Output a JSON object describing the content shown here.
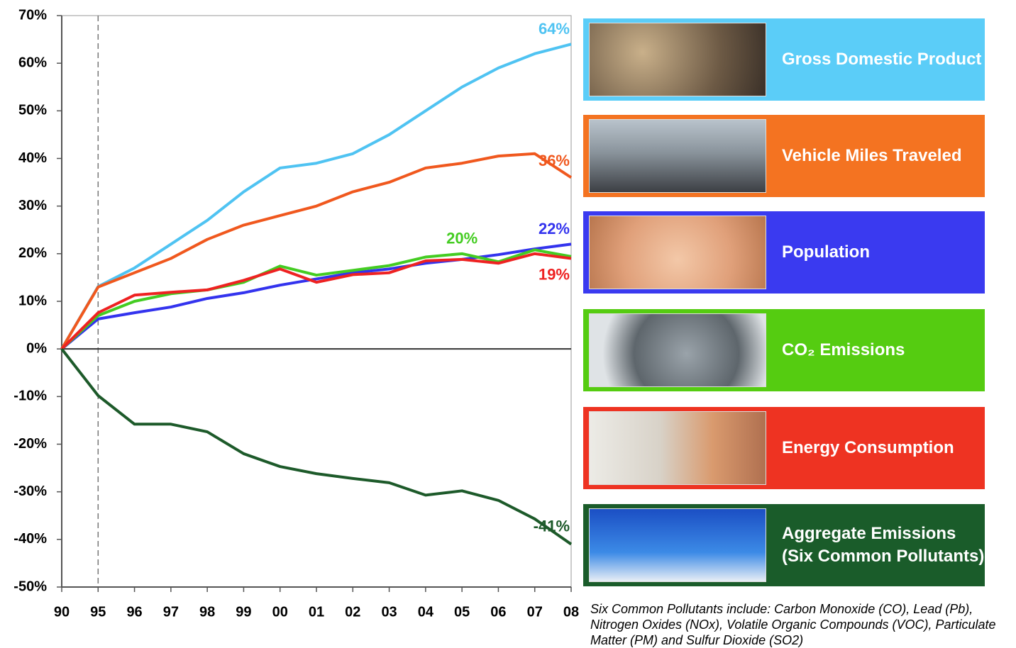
{
  "chart_data": {
    "type": "line",
    "categories": [
      "90",
      "95",
      "96",
      "97",
      "98",
      "99",
      "00",
      "01",
      "02",
      "03",
      "04",
      "05",
      "06",
      "07",
      "08"
    ],
    "ylim": [
      -50,
      70
    ],
    "yticks": [
      {
        "value": 70,
        "label": "70%"
      },
      {
        "value": 60,
        "label": "60%"
      },
      {
        "value": 50,
        "label": "50%"
      },
      {
        "value": 40,
        "label": "40%"
      },
      {
        "value": 30,
        "label": "30%"
      },
      {
        "value": 20,
        "label": "20%"
      },
      {
        "value": 10,
        "label": "10%"
      },
      {
        "value": 0,
        "label": "0%"
      },
      {
        "value": -10,
        "label": "-10%"
      },
      {
        "value": -20,
        "label": "-20%"
      },
      {
        "value": -30,
        "label": "-30%"
      },
      {
        "value": -40,
        "label": "-40%"
      },
      {
        "value": -50,
        "label": "-50%"
      }
    ],
    "grid": false,
    "series": [
      {
        "name": "Gross Domestic Product",
        "color": "#4fc3f2",
        "values": [
          0,
          13.1,
          17,
          22,
          27,
          33,
          38,
          39,
          41,
          45,
          50,
          55,
          59,
          62,
          64
        ],
        "value_labels": [
          null,
          null,
          null,
          null,
          null,
          null,
          null,
          null,
          null,
          null,
          null,
          null,
          null,
          null,
          "64%"
        ]
      },
      {
        "name": "Vehicle Miles Traveled",
        "color": "#f0581e",
        "values": [
          0,
          13,
          16,
          19,
          23,
          26,
          28,
          30,
          33,
          35,
          38,
          39,
          40.5,
          41,
          36
        ],
        "value_labels": [
          null,
          null,
          null,
          null,
          null,
          null,
          null,
          null,
          null,
          null,
          null,
          null,
          null,
          null,
          "36%"
        ]
      },
      {
        "name": "Population",
        "color": "#3333ee",
        "values": [
          0,
          6.3,
          7.6,
          8.8,
          10.6,
          11.8,
          13.4,
          14.7,
          16,
          16.8,
          18,
          18.8,
          19.8,
          21,
          22
        ],
        "value_labels": [
          null,
          null,
          null,
          null,
          null,
          null,
          null,
          null,
          null,
          null,
          null,
          null,
          null,
          null,
          "22%"
        ]
      },
      {
        "name": "CO₂ Emissions",
        "color": "#44cc22",
        "values": [
          0,
          7,
          10,
          11.6,
          12.4,
          14,
          17.4,
          15.5,
          16.5,
          17.5,
          19.3,
          20,
          18.3,
          20.8,
          19.4
        ],
        "value_labels": [
          null,
          null,
          null,
          null,
          null,
          null,
          null,
          null,
          null,
          null,
          null,
          "20%",
          null,
          null,
          null
        ]
      },
      {
        "name": "Energy Consumption",
        "color": "#ee2222",
        "values": [
          0,
          7.6,
          11.3,
          11.9,
          12.4,
          14.4,
          16.8,
          14,
          15.6,
          16,
          18.5,
          18.8,
          18,
          20,
          19
        ],
        "value_labels": [
          null,
          null,
          null,
          null,
          null,
          null,
          null,
          null,
          null,
          null,
          null,
          null,
          null,
          null,
          "19%"
        ]
      },
      {
        "name": "Aggregate Emissions\n(Six Common Pollutants)",
        "color": "#1d5a2a",
        "values": [
          0,
          -9.8,
          -15.8,
          -15.8,
          -17.4,
          -22,
          -24.7,
          -26.2,
          -27.2,
          -28.1,
          -30.7,
          -29.8,
          -31.8,
          -35.7,
          -41
        ],
        "value_labels": [
          null,
          null,
          null,
          null,
          null,
          null,
          null,
          null,
          null,
          null,
          null,
          null,
          null,
          null,
          "-41%"
        ]
      }
    ],
    "panel_colors": [
      "#5bcdf8",
      "#f47321",
      "#3a3af0",
      "#55cc11",
      "#ee3322",
      "#1a5c2a"
    ],
    "footnote": "Six Common Pollutants include: Carbon Monoxide (CO), Lead (Pb), Nitrogen Oxides (NOx), Volatile Organic Compounds (VOC), Particulate Matter (PM) and Sulfur Dioxide (SO2)"
  }
}
